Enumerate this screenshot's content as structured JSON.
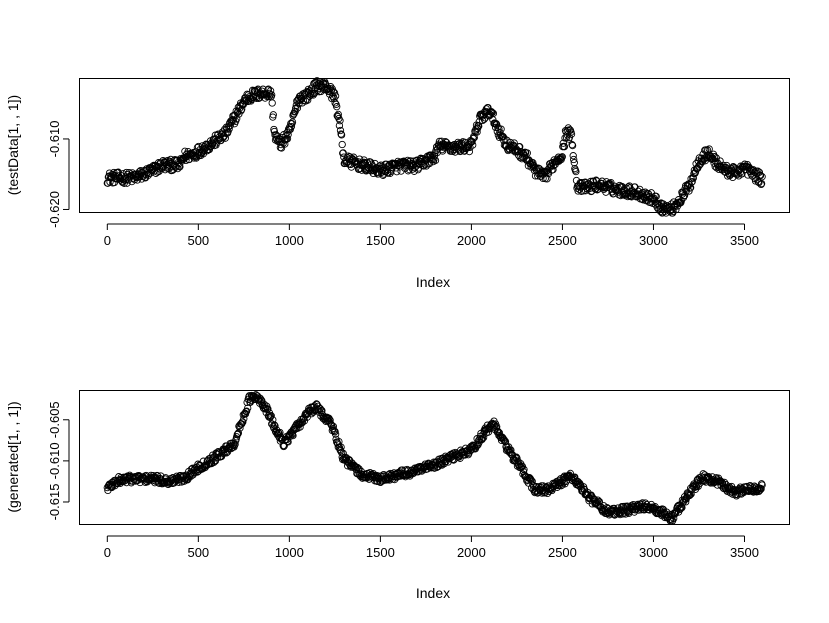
{
  "chart_data": [
    {
      "type": "scatter",
      "point_style": "open-circle",
      "title": "",
      "xlabel": "Index",
      "ylabel": "(testData[1, , 1])",
      "xlim": [
        -150,
        3750
      ],
      "ylim": [
        -0.6205,
        -0.6015
      ],
      "xticks": [
        0,
        500,
        1000,
        1500,
        2000,
        2500,
        3000,
        3500
      ],
      "xtick_labels": [
        "0",
        "500",
        "1000",
        "1500",
        "2000",
        "2500",
        "3000",
        "3500"
      ],
      "yticks": [
        -0.62,
        -0.61
      ],
      "ytick_labels": [
        "-0.620",
        "-0.610"
      ],
      "n_points": 3600,
      "x_step": 1,
      "trend_x": [
        0,
        150,
        200,
        250,
        300,
        400,
        420,
        470,
        550,
        650,
        700,
        760,
        800,
        850,
        900,
        920,
        950,
        1000,
        1050,
        1100,
        1150,
        1200,
        1250,
        1280,
        1300,
        1400,
        1500,
        1600,
        1700,
        1800,
        1820,
        1900,
        2000,
        2050,
        2100,
        2150,
        2200,
        2250,
        2300,
        2350,
        2400,
        2450,
        2500,
        2520,
        2550,
        2580,
        2600,
        2700,
        2800,
        2900,
        3000,
        3050,
        3100,
        3150,
        3200,
        3250,
        3300,
        3350,
        3400,
        3450,
        3500,
        3550,
        3600
      ],
      "trend_y": [
        -0.6155,
        -0.6155,
        -0.615,
        -0.6145,
        -0.6137,
        -0.6137,
        -0.6125,
        -0.6122,
        -0.611,
        -0.6093,
        -0.607,
        -0.6043,
        -0.6038,
        -0.6035,
        -0.6035,
        -0.6095,
        -0.6108,
        -0.6092,
        -0.6043,
        -0.6038,
        -0.6025,
        -0.6025,
        -0.604,
        -0.6085,
        -0.613,
        -0.6137,
        -0.6145,
        -0.6138,
        -0.6138,
        -0.6125,
        -0.611,
        -0.6112,
        -0.611,
        -0.607,
        -0.606,
        -0.6088,
        -0.611,
        -0.6115,
        -0.6125,
        -0.6145,
        -0.6155,
        -0.6135,
        -0.612,
        -0.609,
        -0.6095,
        -0.6165,
        -0.617,
        -0.6165,
        -0.6172,
        -0.6175,
        -0.6185,
        -0.6198,
        -0.62,
        -0.6185,
        -0.6165,
        -0.613,
        -0.612,
        -0.6135,
        -0.6145,
        -0.6148,
        -0.614,
        -0.615,
        -0.6158
      ],
      "noise": 0.0008
    },
    {
      "type": "scatter",
      "point_style": "open-circle",
      "title": "",
      "xlabel": "Index",
      "ylabel": "(generated[1, , 1])",
      "xlim": [
        -150,
        3750
      ],
      "ylim": [
        -0.6178,
        -0.6015
      ],
      "xticks": [
        0,
        500,
        1000,
        1500,
        2000,
        2500,
        3000,
        3500
      ],
      "xtick_labels": [
        "0",
        "500",
        "1000",
        "1500",
        "2000",
        "2500",
        "3000",
        "3500"
      ],
      "yticks": [
        -0.615,
        -0.61,
        -0.605
      ],
      "ytick_labels": [
        "-0.615",
        "-0.610",
        "-0.605"
      ],
      "n_points": 3600,
      "x_step": 1,
      "trend_x": [
        0,
        50,
        100,
        250,
        350,
        430,
        500,
        600,
        700,
        780,
        820,
        870,
        920,
        970,
        1030,
        1100,
        1150,
        1230,
        1300,
        1400,
        1500,
        1600,
        1700,
        1800,
        1900,
        2000,
        2080,
        2120,
        2200,
        2300,
        2350,
        2420,
        2480,
        2550,
        2650,
        2750,
        2850,
        2950,
        3050,
        3100,
        3150,
        3200,
        3270,
        3350,
        3450,
        3550,
        3600
      ],
      "trend_y": [
        -0.6133,
        -0.6125,
        -0.6122,
        -0.6122,
        -0.6125,
        -0.612,
        -0.6108,
        -0.6095,
        -0.6078,
        -0.6025,
        -0.6023,
        -0.6035,
        -0.606,
        -0.6078,
        -0.6063,
        -0.6042,
        -0.6035,
        -0.6055,
        -0.6098,
        -0.6117,
        -0.6122,
        -0.6117,
        -0.6112,
        -0.6105,
        -0.6095,
        -0.6087,
        -0.6063,
        -0.6055,
        -0.6085,
        -0.6118,
        -0.6135,
        -0.6135,
        -0.6128,
        -0.6118,
        -0.6145,
        -0.6162,
        -0.616,
        -0.6155,
        -0.6163,
        -0.617,
        -0.6155,
        -0.6138,
        -0.612,
        -0.6125,
        -0.6138,
        -0.6133,
        -0.6132
      ],
      "noise": 0.0005
    }
  ]
}
